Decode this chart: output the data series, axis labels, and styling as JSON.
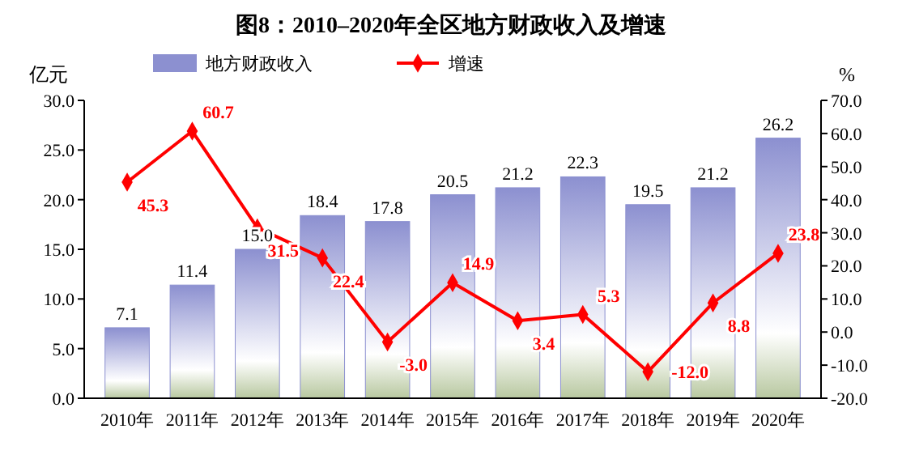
{
  "chart_data": {
    "type": "bar",
    "title": "图8：2010–2020年全区地方财政收入及增速",
    "ylabel": "亿元",
    "y2label": "%",
    "categories": [
      "2010年",
      "2011年",
      "2012年",
      "2013年",
      "2014年",
      "2015年",
      "2016年",
      "2017年",
      "2018年",
      "2019年",
      "2020年"
    ],
    "series": [
      {
        "name": "地方财政收入",
        "color": "#8c90d0",
        "values": [
          7.1,
          11.4,
          15.0,
          18.4,
          17.8,
          20.5,
          21.2,
          22.3,
          19.5,
          21.2,
          26.2
        ],
        "value_labels": [
          "7.1",
          "11.4",
          "15.0",
          "18.4",
          "17.8",
          "20.5",
          "21.2",
          "22.3",
          "19.5",
          "21.2",
          "26.2"
        ]
      },
      {
        "name": "增速",
        "type": "line",
        "axis": "y2",
        "color": "#ff0000",
        "marker": "diamond",
        "values": [
          45.3,
          60.7,
          31.5,
          22.4,
          -3.0,
          14.9,
          3.4,
          5.3,
          -12.0,
          8.8,
          23.8
        ],
        "value_labels": [
          "45.3",
          "60.7",
          "31.5",
          "22.4",
          "-3.0",
          "14.9",
          "3.4",
          "5.3",
          "-12.0",
          "8.8",
          "23.8"
        ]
      }
    ],
    "ylim": [
      0,
      30
    ],
    "yticks": [
      {
        "value": 0,
        "label": "0.0"
      },
      {
        "value": 5,
        "label": "5.0"
      },
      {
        "value": 10,
        "label": "10.0"
      },
      {
        "value": 15,
        "label": "15.0"
      },
      {
        "value": 20,
        "label": "20.0"
      },
      {
        "value": 25,
        "label": "25.0"
      },
      {
        "value": 30,
        "label": "30.0"
      }
    ],
    "y2lim": [
      -20,
      70
    ],
    "y2ticks": [
      {
        "value": -20,
        "label": "-20.0"
      },
      {
        "value": -10,
        "label": "-10.0"
      },
      {
        "value": 0,
        "label": "0.0"
      },
      {
        "value": 10,
        "label": "10.0"
      },
      {
        "value": 20,
        "label": "20.0"
      },
      {
        "value": 30,
        "label": "30.0"
      },
      {
        "value": 40,
        "label": "40.0"
      },
      {
        "value": 50,
        "label": "50.0"
      },
      {
        "value": 60,
        "label": "60.0"
      },
      {
        "value": 70,
        "label": "70.0"
      }
    ],
    "legend": "top",
    "grid": false
  }
}
